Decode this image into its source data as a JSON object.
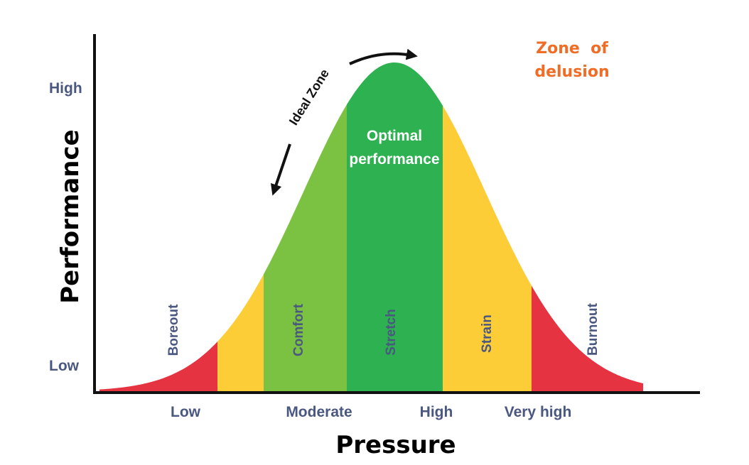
{
  "chart_data": {
    "type": "area",
    "title": "",
    "xlabel": "Pressure",
    "ylabel": "Performance",
    "x_ticks": [
      "Low",
      "Moderate",
      "High",
      "Very high"
    ],
    "y_ticks": [
      "Low",
      "High"
    ],
    "zones": [
      {
        "label": "Boreout",
        "color": "#e63342"
      },
      {
        "label": "",
        "color": "#fdcd37"
      },
      {
        "label": "Comfort",
        "color": "#7cc242"
      },
      {
        "label": "Stretch",
        "color": "#2eb150"
      },
      {
        "label": "Strain",
        "color": "#fdcd37"
      },
      {
        "label": "Burnout",
        "color": "#e63342"
      }
    ],
    "annotations": {
      "optimal": [
        "Optimal",
        "performance"
      ],
      "ideal_zone": "Ideal Zone",
      "delusion": [
        "Zone  of",
        "delusion"
      ],
      "delusion_color": "#ef6d27"
    }
  }
}
